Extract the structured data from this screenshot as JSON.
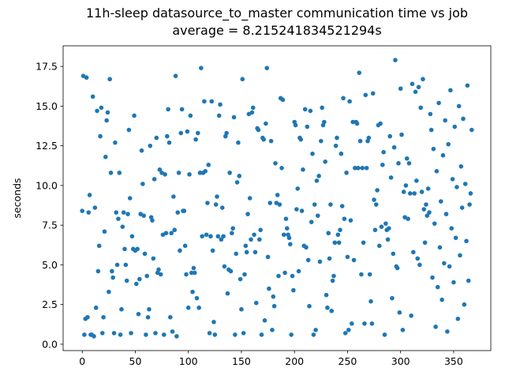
{
  "chart_data": {
    "type": "scatter",
    "title": "11h-sleep datasource_to_master communication time vs job",
    "subtitle": "average = 8.215241834521294s",
    "y_label": "seconds",
    "color": "#1f77b4",
    "xlim": [
      -18,
      385
    ],
    "ylim": [
      -0.4,
      18.8
    ],
    "xticks": [
      0,
      50,
      100,
      150,
      200,
      250,
      300,
      350
    ],
    "yticks": [
      {
        "value": 0,
        "label": "0.0"
      },
      2.5,
      {
        "value": 5,
        "label": "5.0"
      },
      7.5,
      {
        "value": 10,
        "label": "10.0"
      },
      12.5,
      {
        "value": 15,
        "label": "15.0"
      },
      17.5
    ],
    "x": [
      0,
      1,
      2,
      3,
      4,
      5,
      6,
      7,
      8,
      9,
      10,
      11,
      12,
      13,
      14,
      15,
      16,
      17,
      18,
      19,
      20,
      21,
      22,
      23,
      24,
      25,
      26,
      27,
      28,
      29,
      30,
      31,
      32,
      33,
      34,
      35,
      36,
      37,
      38,
      39,
      40,
      41,
      42,
      43,
      44,
      45,
      46,
      47,
      48,
      49,
      50,
      51,
      52,
      53,
      54,
      55,
      56,
      57,
      58,
      59,
      60,
      61,
      62,
      63,
      64,
      65,
      66,
      67,
      68,
      69,
      70,
      71,
      72,
      73,
      74,
      75,
      76,
      77,
      78,
      79,
      80,
      81,
      82,
      83,
      84,
      85,
      86,
      87,
      88,
      89,
      90,
      91,
      92,
      93,
      94,
      95,
      96,
      97,
      98,
      99,
      100,
      101,
      102,
      103,
      104,
      105,
      106,
      107,
      108,
      109,
      110,
      111,
      112,
      113,
      114,
      115,
      116,
      117,
      118,
      119,
      120,
      121,
      122,
      123,
      124,
      125,
      126,
      127,
      128,
      129,
      130,
      131,
      132,
      133,
      134,
      135,
      136,
      137,
      138,
      139,
      140,
      141,
      142,
      143,
      144,
      145,
      146,
      147,
      148,
      149,
      150,
      151,
      152,
      153,
      154,
      155,
      156,
      157,
      158,
      159,
      160,
      161,
      162,
      163,
      164,
      165,
      166,
      167,
      168,
      169,
      170,
      171,
      172,
      173,
      174,
      175,
      176,
      177,
      178,
      179,
      180,
      181,
      182,
      183,
      184,
      185,
      186,
      187,
      188,
      189,
      190,
      191,
      192,
      193,
      194,
      195,
      196,
      197,
      198,
      199,
      200,
      201,
      202,
      203,
      204,
      205,
      206,
      207,
      208,
      209,
      210,
      211,
      212,
      213,
      214,
      215,
      216,
      217,
      218,
      219,
      220,
      221,
      222,
      223,
      224,
      225,
      226,
      227,
      228,
      229,
      230,
      231,
      232,
      233,
      234,
      235,
      236,
      237,
      238,
      239,
      240,
      241,
      242,
      243,
      244,
      245,
      246,
      247,
      248,
      249,
      250,
      251,
      252,
      253,
      254,
      255,
      256,
      257,
      258,
      259,
      260,
      261,
      262,
      263,
      264,
      265,
      266,
      267,
      268,
      269,
      270,
      271,
      272,
      273,
      274,
      275,
      276,
      277,
      278,
      279,
      280,
      281,
      282,
      283,
      284,
      285,
      286,
      287,
      288,
      289,
      290,
      291,
      292,
      293,
      294,
      295,
      296,
      297,
      298,
      299,
      300,
      301,
      302,
      303,
      304,
      305,
      306,
      307,
      308,
      309,
      310,
      311,
      312,
      313,
      314,
      315,
      316,
      317,
      318,
      319,
      320,
      321,
      322,
      323,
      324,
      325,
      326,
      327,
      328,
      329,
      330,
      331,
      332,
      333,
      334,
      335,
      336,
      337,
      338,
      339,
      340,
      341,
      342,
      343,
      344,
      345,
      346,
      347,
      348,
      349,
      350,
      351,
      352,
      353,
      354,
      355,
      356,
      357,
      358,
      359,
      360,
      361,
      362,
      363,
      364,
      365,
      366,
      367
    ],
    "values": [
      8.4,
      16.9,
      0.6,
      1.6,
      16.8,
      1.7,
      8.3,
      9.4,
      0.6,
      0.6,
      15.6,
      0.5,
      8.6,
      2.3,
      14.7,
      4.6,
      6.2,
      13.1,
      14.9,
      0.7,
      1.7,
      7.1,
      11.8,
      14.1,
      14.6,
      3.3,
      16.7,
      10.8,
      4.6,
      4.2,
      0.7,
      12.7,
      8.3,
      5.0,
      7.9,
      10.8,
      0.6,
      2.2,
      7.4,
      8.3,
      6.0,
      5.0,
      4.0,
      8.2,
      13.5,
      9.2,
      0.7,
      6.8,
      6.0,
      14.4,
      5.9,
      3.8,
      6.0,
      1.9,
      4.1,
      8.2,
      12.2,
      10.1,
      8.1,
      5.7,
      0.6,
      4.3,
      1.7,
      2.2,
      12.5,
      8.0,
      7.8,
      5.4,
      10.4,
      0.7,
      13.0,
      4.5,
      4.7,
      11.0,
      4.4,
      10.8,
      6.9,
      0.6,
      10.7,
      7.0,
      13.1,
      14.8,
      12.7,
      1.7,
      7.0,
      0.8,
      9.3,
      7.2,
      16.9,
      0.5,
      8.3,
      10.8,
      5.9,
      13.3,
      14.8,
      8.4,
      8.4,
      6.2,
      4.4,
      13.4,
      2.3,
      10.7,
      14.4,
      4.5,
      3.3,
      4.8,
      4.5,
      12.9,
      2.9,
      13.3,
      2.3,
      10.8,
      17.4,
      6.8,
      10.8,
      15.3,
      10.9,
      6.9,
      8.9,
      11.3,
      0.7,
      6.8,
      15.3,
      5.9,
      1.4,
      0.6,
      8.8,
      9.3,
      6.8,
      14.4,
      15.1,
      6.6,
      8.6,
      6.8,
      4.9,
      13.1,
      13.3,
      3.2,
      4.7,
      10.8,
      4.6,
      7.0,
      7.3,
      14.3,
      0.6,
      5.7,
      10.2,
      12.7,
      10.6,
      4.1,
      2.2,
      16.7,
      0.7,
      4.4,
      6.2,
      5.8,
      8.2,
      14.5,
      9.2,
      6.6,
      14.6,
      14.9,
      6.9,
      5.8,
      2.6,
      13.6,
      13.5,
      6.6,
      7.2,
      0.6,
      13.0,
      12.9,
      1.5,
      13.9,
      17.4,
      5.5,
      3.5,
      8.9,
      12.8,
      0.9,
      3.0,
      2.4,
      11.4,
      8.9,
      9.4,
      4.3,
      8.8,
      15.5,
      11.1,
      15.4,
      6.9,
      4.5,
      7.9,
      7.3,
      6.9,
      6.7,
      6.3,
      0.6,
      4.3,
      3.4,
      14.0,
      13.8,
      8.5,
      9.8,
      4.6,
      13.0,
      12.9,
      8.4,
      11.0,
      6.2,
      14.8,
      6.1,
      13.7,
      5.3,
      2.4,
      14.7,
      7.7,
      12.0,
      0.6,
      8.8,
      0.9,
      10.3,
      8.1,
      10.6,
      5.2,
      12.8,
      14.9,
      13.8,
      14.0,
      11.5,
      3.1,
      2.3,
      7.0,
      5.4,
      8.8,
      2.1,
      4.0,
      4.3,
      6.4,
      12.5,
      13.0,
      6.9,
      6.4,
      7.2,
      12.0,
      8.7,
      15.5,
      7.9,
      0.7,
      10.8,
      5.5,
      0.9,
      15.3,
      7.8,
      1.3,
      14.0,
      5.3,
      11.1,
      14.0,
      13.9,
      11.1,
      17.1,
      12.8,
      4.4,
      11.1,
      6.4,
      1.3,
      15.7,
      11.1,
      12.8,
      13.0,
      4.4,
      2.7,
      1.3,
      15.8,
      9.1,
      7.2,
      8.8,
      9.7,
      13.8,
      6.2,
      13.9,
      7.4,
      11.3,
      12.1,
      0.6,
      7.6,
      7.2,
      6.6,
      7.3,
      13.1,
      10.5,
      2.9,
      5.7,
      12.4,
      17.9,
      4.9,
      4.8,
      11.4,
      2.0,
      16.1,
      13.2,
      0.9,
      9.6,
      8.0,
      10.0,
      11.7,
      7.9,
      11.4,
      9.5,
      1.8,
      16.4,
      5.8,
      9.5,
      15.9,
      10.3,
      5.4,
      16.2,
      5.0,
      14.9,
      9.6,
      16.7,
      8.5,
      6.4,
      8.8,
      8.1,
      9.8,
      8.3,
      14.5,
      13.5,
      4.2,
      12.3,
      7.6,
      1.1,
      10.9,
      3.6,
      15.2,
      6.1,
      9.0,
      2.8,
      11.9,
      5.1,
      14.1,
      8.2,
      0.8,
      12.6,
      4.9,
      16.0,
      7.3,
      10.4,
      3.9,
      13.7,
      6.7,
      9.9,
      1.6,
      15.0,
      5.6,
      11.2,
      8.6,
      14.2,
      2.5,
      10.1,
      6.5,
      16.3,
      4.0,
      8.8,
      9.5,
      13.5
    ]
  }
}
